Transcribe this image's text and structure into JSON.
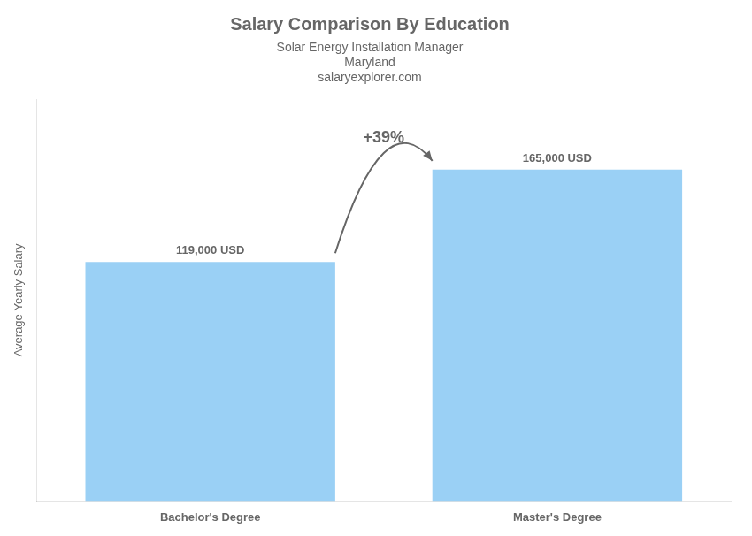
{
  "chart_data": {
    "type": "bar",
    "title": "Salary Comparison By Education",
    "subtitle": "Solar Energy Installation Manager",
    "ylabel": "Average Yearly Salary",
    "annotations": [
      "Maryland",
      "salaryexplorer.com",
      "+39%"
    ],
    "categories": [
      "Bachelor's Degree",
      "Master's Degree"
    ],
    "values": [
      119000,
      165000
    ],
    "value_labels": [
      "119,000 USD",
      "165,000 USD"
    ],
    "data_labels": true,
    "ylim": [
      0,
      200000
    ],
    "grid": false,
    "tick_labels": "x"
  }
}
